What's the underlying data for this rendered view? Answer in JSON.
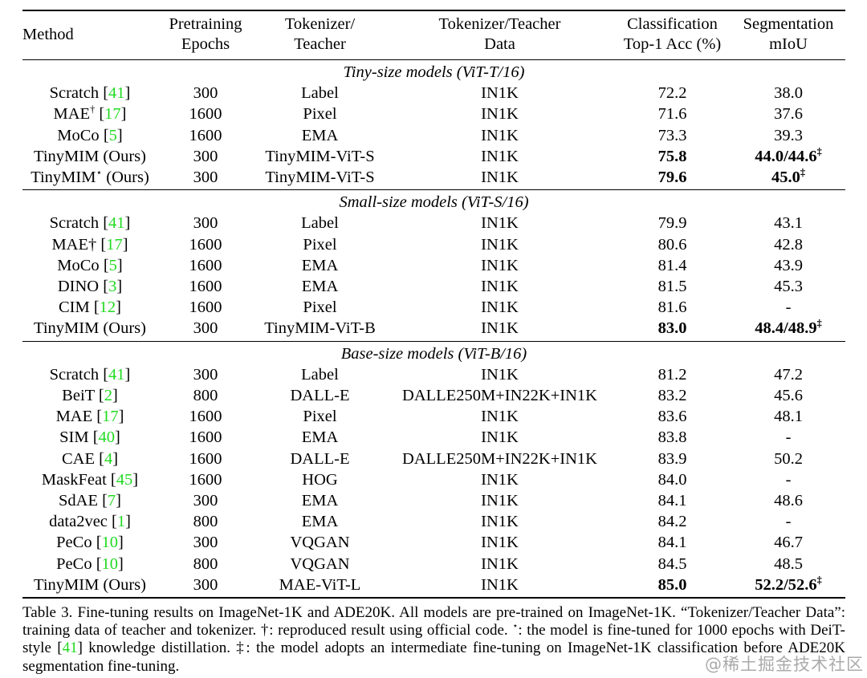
{
  "colors": {
    "citation_green": "#22da22",
    "watermark_gray": "#aaaaaa"
  },
  "table": {
    "columns": [
      {
        "id": "method",
        "lines": [
          "Method",
          ""
        ]
      },
      {
        "id": "epochs",
        "lines": [
          "Pretraining",
          "Epochs"
        ]
      },
      {
        "id": "tokenizer",
        "lines": [
          "Tokenizer/",
          "Teacher"
        ]
      },
      {
        "id": "data",
        "lines": [
          "Tokenizer/Teacher",
          "Data"
        ]
      },
      {
        "id": "acc",
        "lines": [
          "Classification",
          "Top-1 Acc (%)"
        ]
      },
      {
        "id": "miou",
        "lines": [
          "Segmentation",
          "mIoU"
        ]
      }
    ],
    "sections": [
      {
        "title": "Tiny-size models (ViT-T/16)",
        "rows": [
          {
            "method": {
              "pre": "Scratch",
              "sup": "",
              "post": "",
              "cite": "41"
            },
            "epochs": "300",
            "tokenizer": "Label",
            "data": "IN1K",
            "acc": "72.2",
            "miou": "38.0",
            "miou_sup": "",
            "bold": false
          },
          {
            "method": {
              "pre": "MAE",
              "sup": "†",
              "post": "",
              "cite": "17"
            },
            "epochs": "1600",
            "tokenizer": "Pixel",
            "data": "IN1K",
            "acc": "71.6",
            "miou": "37.6",
            "miou_sup": "",
            "bold": false
          },
          {
            "method": {
              "pre": "MoCo",
              "sup": "",
              "post": "",
              "cite": "5"
            },
            "epochs": "1600",
            "tokenizer": "EMA",
            "data": "IN1K",
            "acc": "73.3",
            "miou": "39.3",
            "miou_sup": "",
            "bold": false
          },
          {
            "method": {
              "pre": "TinyMIM (Ours)",
              "sup": "",
              "post": "",
              "cite": ""
            },
            "epochs": "300",
            "tokenizer": "TinyMIM-ViT-S",
            "data": "IN1K",
            "acc": "75.8",
            "miou": "44.0/44.6",
            "miou_sup": "‡",
            "bold": true
          },
          {
            "method": {
              "pre": "TinyMIM",
              "sup": "⋆",
              "post": " (Ours)",
              "cite": ""
            },
            "epochs": "300",
            "tokenizer": "TinyMIM-ViT-S",
            "data": "IN1K",
            "acc": "79.6",
            "miou": "45.0",
            "miou_sup": "‡",
            "bold": true
          }
        ]
      },
      {
        "title": "Small-size models (ViT-S/16)",
        "rows": [
          {
            "method": {
              "pre": "Scratch",
              "sup": "",
              "post": "",
              "cite": "41"
            },
            "epochs": "300",
            "tokenizer": "Label",
            "data": "IN1K",
            "acc": "79.9",
            "miou": "43.1",
            "miou_sup": "",
            "bold": false
          },
          {
            "method": {
              "pre": "MAE†",
              "sup": "",
              "post": "",
              "cite": "17"
            },
            "epochs": "1600",
            "tokenizer": "Pixel",
            "data": "IN1K",
            "acc": "80.6",
            "miou": "42.8",
            "miou_sup": "",
            "bold": false
          },
          {
            "method": {
              "pre": "MoCo",
              "sup": "",
              "post": "",
              "cite": "5"
            },
            "epochs": "1600",
            "tokenizer": "EMA",
            "data": "IN1K",
            "acc": "81.4",
            "miou": "43.9",
            "miou_sup": "",
            "bold": false
          },
          {
            "method": {
              "pre": "DINO",
              "sup": "",
              "post": "",
              "cite": "3"
            },
            "epochs": "1600",
            "tokenizer": "EMA",
            "data": "IN1K",
            "acc": "81.5",
            "miou": "45.3",
            "miou_sup": "",
            "bold": false
          },
          {
            "method": {
              "pre": "CIM",
              "sup": "",
              "post": "",
              "cite": "12"
            },
            "epochs": "1600",
            "tokenizer": "Pixel",
            "data": "IN1K",
            "acc": "81.6",
            "miou": "-",
            "miou_sup": "",
            "bold": false
          },
          {
            "method": {
              "pre": "TinyMIM (Ours)",
              "sup": "",
              "post": "",
              "cite": ""
            },
            "epochs": "300",
            "tokenizer": "TinyMIM-ViT-B",
            "data": "IN1K",
            "acc": "83.0",
            "miou": "48.4/48.9",
            "miou_sup": "‡",
            "bold": true
          }
        ]
      },
      {
        "title": "Base-size models (ViT-B/16)",
        "rows": [
          {
            "method": {
              "pre": "Scratch",
              "sup": "",
              "post": "",
              "cite": "41"
            },
            "epochs": "300",
            "tokenizer": "Label",
            "data": "IN1K",
            "acc": "81.2",
            "miou": "47.2",
            "miou_sup": "",
            "bold": false
          },
          {
            "method": {
              "pre": "BeiT",
              "sup": "",
              "post": "",
              "cite": "2"
            },
            "epochs": "800",
            "tokenizer": "DALL-E",
            "data": "DALLE250M+IN22K+IN1K",
            "acc": "83.2",
            "miou": "45.6",
            "miou_sup": "",
            "bold": false
          },
          {
            "method": {
              "pre": "MAE",
              "sup": "",
              "post": "",
              "cite": "17"
            },
            "epochs": "1600",
            "tokenizer": "Pixel",
            "data": "IN1K",
            "acc": "83.6",
            "miou": "48.1",
            "miou_sup": "",
            "bold": false
          },
          {
            "method": {
              "pre": "SIM",
              "sup": "",
              "post": "",
              "cite": "40"
            },
            "epochs": "1600",
            "tokenizer": "EMA",
            "data": "IN1K",
            "acc": "83.8",
            "miou": "-",
            "miou_sup": "",
            "bold": false
          },
          {
            "method": {
              "pre": "CAE",
              "sup": "",
              "post": "",
              "cite": "4"
            },
            "epochs": "1600",
            "tokenizer": "DALL-E",
            "data": "DALLE250M+IN22K+IN1K",
            "acc": "83.9",
            "miou": "50.2",
            "miou_sup": "",
            "bold": false
          },
          {
            "method": {
              "pre": "MaskFeat",
              "sup": "",
              "post": "",
              "cite": "45"
            },
            "epochs": "1600",
            "tokenizer": "HOG",
            "data": "IN1K",
            "acc": "84.0",
            "miou": "-",
            "miou_sup": "",
            "bold": false
          },
          {
            "method": {
              "pre": "SdAE",
              "sup": "",
              "post": "",
              "cite": "7"
            },
            "epochs": "300",
            "tokenizer": "EMA",
            "data": "IN1K",
            "acc": "84.1",
            "miou": "48.6",
            "miou_sup": "",
            "bold": false
          },
          {
            "method": {
              "pre": "data2vec",
              "sup": "",
              "post": "",
              "cite": "1"
            },
            "epochs": "800",
            "tokenizer": "EMA",
            "data": "IN1K",
            "acc": "84.2",
            "miou": "-",
            "miou_sup": "",
            "bold": false
          },
          {
            "method": {
              "pre": "PeCo",
              "sup": "",
              "post": "",
              "cite": "10"
            },
            "epochs": "300",
            "tokenizer": "VQGAN",
            "data": "IN1K",
            "acc": "84.1",
            "miou": "46.7",
            "miou_sup": "",
            "bold": false
          },
          {
            "method": {
              "pre": "PeCo",
              "sup": "",
              "post": "",
              "cite": "10"
            },
            "epochs": "800",
            "tokenizer": "VQGAN",
            "data": "IN1K",
            "acc": "84.5",
            "miou": "48.5",
            "miou_sup": "",
            "bold": false
          },
          {
            "method": {
              "pre": "TinyMIM (Ours)",
              "sup": "",
              "post": "",
              "cite": ""
            },
            "epochs": "300",
            "tokenizer": "MAE-ViT-L",
            "data": "IN1K",
            "acc": "85.0",
            "miou": "52.2/52.6",
            "miou_sup": "‡",
            "bold": true
          }
        ]
      }
    ]
  },
  "caption": {
    "parts": [
      {
        "text": "Table 3. Fine-tuning results on ImageNet-1K and ADE20K. All models are pre-trained on ImageNet-1K. “Tokenizer/Teacher Data”: training data of teacher and tokenizer. †: reproduced result using official code. ",
        "style": ""
      },
      {
        "text": "⋆",
        "style": "sup"
      },
      {
        "text": ": the model is fine-tuned for 1000 epochs with DeiT-style [",
        "style": ""
      },
      {
        "text": "41",
        "style": "green"
      },
      {
        "text": "] knowledge distillation. ‡: the model adopts an intermediate fine-tuning on ImageNet-1K classification before ADE20K segmentation fine-tuning.",
        "style": ""
      }
    ]
  },
  "watermark": "@稀土掘金技术社区"
}
